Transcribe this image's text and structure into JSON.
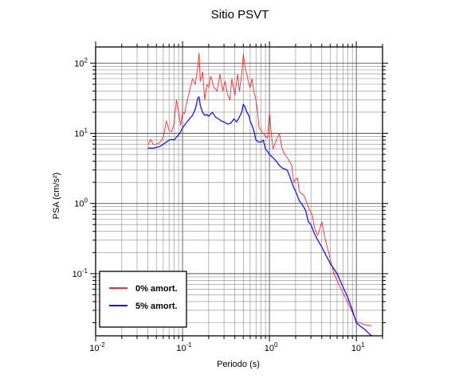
{
  "chart_data": {
    "type": "line",
    "title": "Sitio PSVT",
    "xlabel": "Periodo (s)",
    "ylabel": "PSA (cm/s²)",
    "x_scale": "log",
    "y_scale": "log",
    "xlim": [
      0.01,
      20
    ],
    "ylim": [
      0.013,
      170
    ],
    "grid": true,
    "legend_position": "bottom-left",
    "x_ticks": [
      {
        "value": 0.01,
        "base": "10",
        "exp": "-2"
      },
      {
        "value": 0.1,
        "base": "10",
        "exp": "-1"
      },
      {
        "value": 1,
        "base": "10",
        "exp": "0"
      },
      {
        "value": 10,
        "base": "10",
        "exp": "1"
      }
    ],
    "y_ticks": [
      {
        "value": 0.1,
        "base": "10",
        "exp": "-1"
      },
      {
        "value": 1,
        "base": "10",
        "exp": "0"
      },
      {
        "value": 10,
        "base": "10",
        "exp": "1"
      },
      {
        "value": 100,
        "base": "10",
        "exp": "2"
      }
    ],
    "series": [
      {
        "name": "0% amort.",
        "color": "#ff2a2a",
        "points": [
          [
            0.04,
            6.8
          ],
          [
            0.043,
            8.2
          ],
          [
            0.046,
            6.9
          ],
          [
            0.05,
            7.0
          ],
          [
            0.055,
            7.4
          ],
          [
            0.06,
            8.8
          ],
          [
            0.065,
            15
          ],
          [
            0.07,
            11
          ],
          [
            0.075,
            10.5
          ],
          [
            0.08,
            14
          ],
          [
            0.085,
            30
          ],
          [
            0.09,
            20
          ],
          [
            0.095,
            13
          ],
          [
            0.1,
            20
          ],
          [
            0.105,
            19
          ],
          [
            0.11,
            25
          ],
          [
            0.12,
            40
          ],
          [
            0.13,
            60
          ],
          [
            0.14,
            50
          ],
          [
            0.15,
            90
          ],
          [
            0.155,
            140
          ],
          [
            0.16,
            55
          ],
          [
            0.17,
            75
          ],
          [
            0.18,
            30
          ],
          [
            0.19,
            50
          ],
          [
            0.2,
            45
          ],
          [
            0.21,
            65
          ],
          [
            0.22,
            55
          ],
          [
            0.23,
            45
          ],
          [
            0.25,
            40
          ],
          [
            0.27,
            70
          ],
          [
            0.29,
            40
          ],
          [
            0.31,
            55
          ],
          [
            0.33,
            35
          ],
          [
            0.35,
            30
          ],
          [
            0.37,
            60
          ],
          [
            0.4,
            35
          ],
          [
            0.43,
            70
          ],
          [
            0.45,
            40
          ],
          [
            0.48,
            70
          ],
          [
            0.5,
            135
          ],
          [
            0.53,
            80
          ],
          [
            0.55,
            70
          ],
          [
            0.58,
            50
          ],
          [
            0.6,
            45
          ],
          [
            0.63,
            60
          ],
          [
            0.66,
            40
          ],
          [
            0.7,
            30
          ],
          [
            0.73,
            20
          ],
          [
            0.76,
            12
          ],
          [
            0.8,
            11
          ],
          [
            0.85,
            10
          ],
          [
            0.9,
            9
          ],
          [
            0.95,
            8.5
          ],
          [
            1.0,
            20
          ],
          [
            1.05,
            10
          ],
          [
            1.1,
            6
          ],
          [
            1.2,
            8
          ],
          [
            1.3,
            10
          ],
          [
            1.4,
            6
          ],
          [
            1.5,
            5
          ],
          [
            1.6,
            4.5
          ],
          [
            1.7,
            4
          ],
          [
            1.8,
            3.5
          ],
          [
            1.9,
            2
          ],
          [
            2.0,
            2.2
          ],
          [
            2.1,
            2.3
          ],
          [
            2.2,
            1.5
          ],
          [
            2.3,
            1.4
          ],
          [
            2.5,
            1.3
          ],
          [
            2.7,
            1.0
          ],
          [
            2.9,
            0.8
          ],
          [
            3.1,
            0.7
          ],
          [
            3.3,
            0.45
          ],
          [
            3.6,
            0.35
          ],
          [
            4.0,
            0.55
          ],
          [
            4.4,
            0.3
          ],
          [
            4.8,
            0.2
          ],
          [
            5.5,
            0.1
          ],
          [
            6.5,
            0.065
          ],
          [
            7.5,
            0.045
          ],
          [
            9.0,
            0.028
          ],
          [
            10.0,
            0.021
          ],
          [
            12.0,
            0.019
          ],
          [
            15.0,
            0.018
          ]
        ]
      },
      {
        "name": "5% amort.",
        "color": "#1414ff",
        "points": [
          [
            0.04,
            6.2
          ],
          [
            0.045,
            6.1
          ],
          [
            0.05,
            6.3
          ],
          [
            0.055,
            6.5
          ],
          [
            0.06,
            7.0
          ],
          [
            0.065,
            7.5
          ],
          [
            0.07,
            8.0
          ],
          [
            0.075,
            8.2
          ],
          [
            0.08,
            8.0
          ],
          [
            0.085,
            8.8
          ],
          [
            0.09,
            9.5
          ],
          [
            0.095,
            10.5
          ],
          [
            0.1,
            12
          ],
          [
            0.11,
            14
          ],
          [
            0.12,
            16
          ],
          [
            0.13,
            18
          ],
          [
            0.14,
            22
          ],
          [
            0.15,
            32
          ],
          [
            0.155,
            33
          ],
          [
            0.16,
            25
          ],
          [
            0.17,
            20
          ],
          [
            0.18,
            18
          ],
          [
            0.19,
            18.5
          ],
          [
            0.2,
            17.5
          ],
          [
            0.22,
            20
          ],
          [
            0.24,
            17
          ],
          [
            0.26,
            16
          ],
          [
            0.28,
            15
          ],
          [
            0.3,
            14.5
          ],
          [
            0.33,
            13.5
          ],
          [
            0.36,
            14
          ],
          [
            0.39,
            16
          ],
          [
            0.42,
            14.5
          ],
          [
            0.45,
            17
          ],
          [
            0.48,
            20
          ],
          [
            0.5,
            26
          ],
          [
            0.52,
            24
          ],
          [
            0.55,
            20
          ],
          [
            0.58,
            18
          ],
          [
            0.6,
            15
          ],
          [
            0.63,
            13
          ],
          [
            0.66,
            11
          ],
          [
            0.7,
            8
          ],
          [
            0.75,
            7.5
          ],
          [
            0.8,
            7.5
          ],
          [
            0.85,
            8
          ],
          [
            0.9,
            6
          ],
          [
            0.95,
            5.5
          ],
          [
            1.0,
            5.0
          ],
          [
            1.1,
            4.5
          ],
          [
            1.2,
            4
          ],
          [
            1.3,
            3.5
          ],
          [
            1.4,
            3.2
          ],
          [
            1.5,
            3.1
          ],
          [
            1.6,
            3.0
          ],
          [
            1.7,
            2.5
          ],
          [
            1.8,
            2.0
          ],
          [
            1.9,
            1.7
          ],
          [
            2.0,
            1.5
          ],
          [
            2.2,
            1.1
          ],
          [
            2.4,
            0.95
          ],
          [
            2.6,
            0.8
          ],
          [
            2.8,
            0.55
          ],
          [
            3.0,
            0.5
          ],
          [
            3.3,
            0.37
          ],
          [
            3.6,
            0.3
          ],
          [
            4.0,
            0.24
          ],
          [
            4.5,
            0.18
          ],
          [
            5.0,
            0.14
          ],
          [
            6.0,
            0.1
          ],
          [
            7.0,
            0.065
          ],
          [
            8.0,
            0.045
          ],
          [
            9.0,
            0.03
          ],
          [
            10.0,
            0.02
          ],
          [
            11.0,
            0.018
          ],
          [
            12.5,
            0.016
          ],
          [
            14.0,
            0.014
          ],
          [
            15.0,
            0.013
          ]
        ]
      }
    ]
  }
}
